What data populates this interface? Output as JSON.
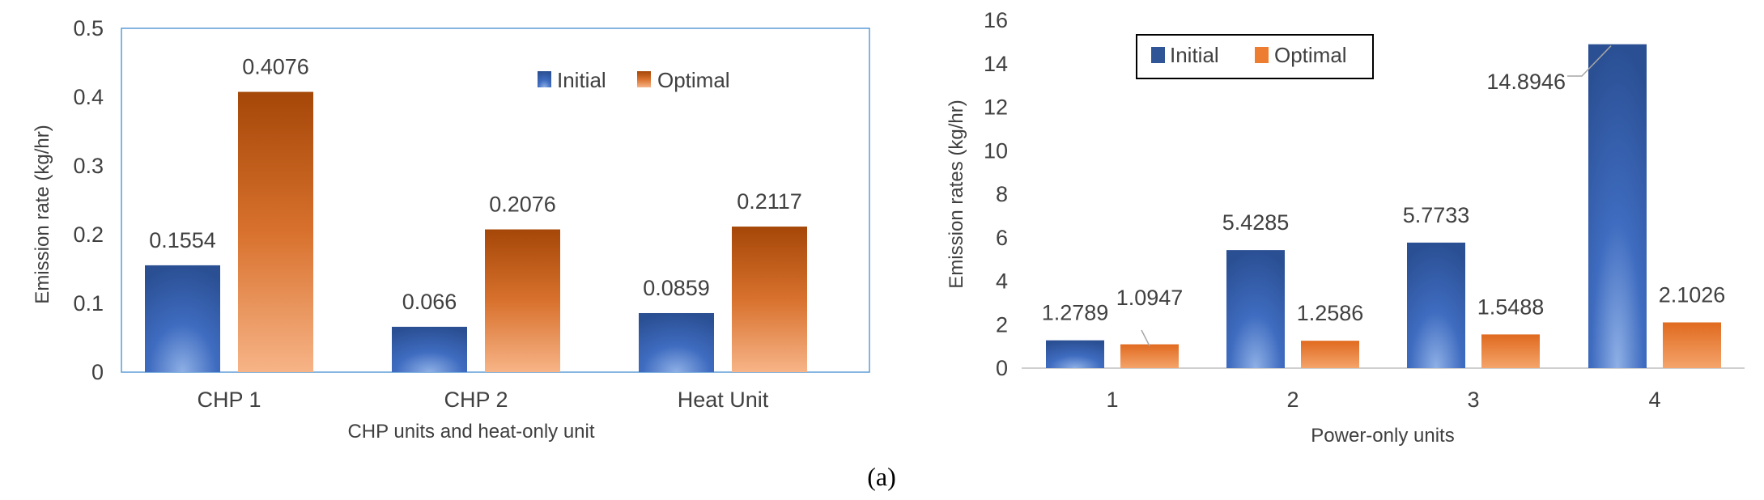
{
  "chart_data": [
    {
      "type": "bar",
      "categories": [
        "CHP 1",
        "CHP 2",
        "Heat Unit"
      ],
      "series": [
        {
          "name": "Initial",
          "values": [
            0.1554,
            0.066,
            0.0859
          ],
          "labels": [
            "0.1554",
            "0.066",
            "0.0859"
          ],
          "color": "#2f5597"
        },
        {
          "name": "Optimal",
          "values": [
            0.4076,
            0.2076,
            0.2117
          ],
          "labels": [
            "0.4076",
            "0.2076",
            "0.2117"
          ],
          "color": "#c55a11"
        }
      ],
      "title": "",
      "xlabel": "CHP units and heat-only unit",
      "ylabel": "Emission rate (kg/hr)",
      "ylim": [
        0,
        0.5
      ],
      "yticks": [
        "0",
        "0.1",
        "0.2",
        "0.3",
        "0.4",
        "0.5"
      ],
      "legend_position": "top-right",
      "grid": false
    },
    {
      "type": "bar",
      "categories": [
        "1",
        "2",
        "3",
        "4"
      ],
      "series": [
        {
          "name": "Initial",
          "values": [
            1.2789,
            5.4285,
            5.7733,
            14.8946
          ],
          "labels": [
            "1.2789",
            "5.4285",
            "5.7733",
            "14.8946"
          ],
          "color": "#2f5597"
        },
        {
          "name": "Optimal",
          "values": [
            1.0947,
            1.2586,
            1.5488,
            2.1026
          ],
          "labels": [
            "1.0947",
            "1.2586",
            "1.5488",
            "2.1026"
          ],
          "color": "#ed7d31"
        }
      ],
      "title": "",
      "xlabel": "Power-only units",
      "ylabel": "Emission rates (kg/hr)",
      "ylim": [
        0,
        16
      ],
      "yticks": [
        "0",
        "2",
        "4",
        "6",
        "8",
        "10",
        "12",
        "14",
        "16"
      ],
      "legend_position": "top-left",
      "grid": false
    }
  ],
  "caption": "(a)"
}
